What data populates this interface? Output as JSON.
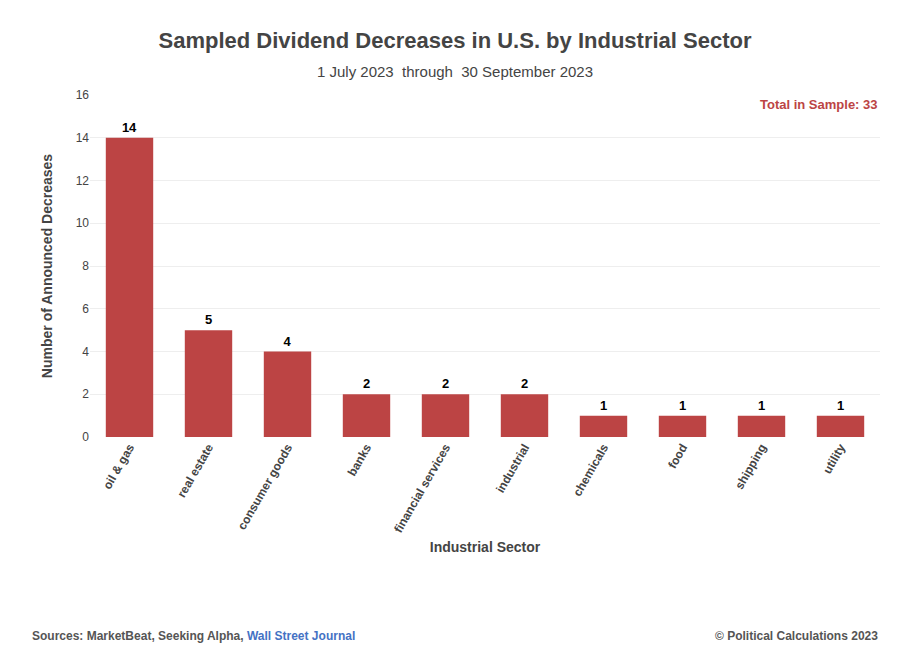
{
  "chart_data": {
    "type": "bar",
    "title": "Sampled Dividend Decreases in U.S. by Industrial Sector",
    "subtitle": "1 July 2023  through  30 September 2023",
    "categories": [
      "oil & gas",
      "real estate",
      "consumer goods",
      "banks",
      "financial services",
      "industrial",
      "chemicals",
      "food",
      "shipping",
      "utility"
    ],
    "values": [
      14,
      5,
      4,
      2,
      2,
      2,
      1,
      1,
      1,
      1
    ],
    "color": "#bc4444",
    "xlabel": "Industrial Sector",
    "ylabel": "Number of Announced Decreases",
    "ylim": [
      0,
      16
    ],
    "yticks": [
      0,
      2,
      4,
      6,
      8,
      10,
      12,
      14,
      16
    ],
    "grid": true,
    "data_labels": true,
    "annotation": {
      "text": "Total in Sample: 33",
      "color": "#bc4444"
    },
    "source": [
      {
        "text": "Sources: MarketBeat, Seeking Alpha, ",
        "color": "#555555"
      },
      {
        "text": "Wall Street Journal",
        "color": "#4472c4"
      }
    ],
    "copyright": {
      "text": "© Political Calculations 2023",
      "color": "#555555"
    }
  }
}
